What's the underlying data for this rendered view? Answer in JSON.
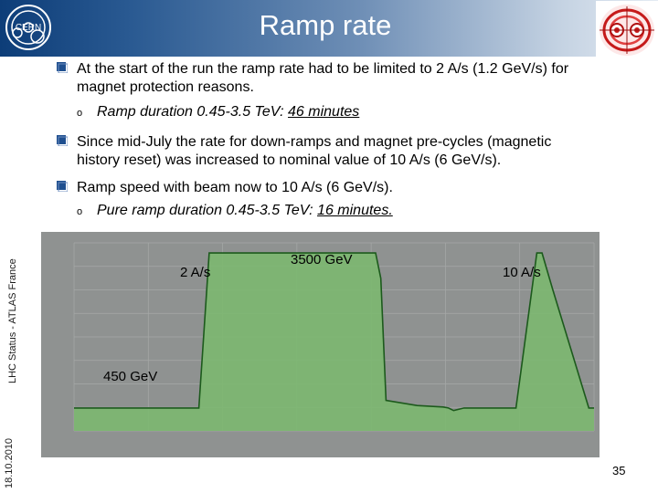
{
  "header": {
    "title": "Ramp rate",
    "cern_logo_text": "CERN",
    "accent": "#0d3d78"
  },
  "side": {
    "footer_left": "LHC Status - ATLAS France",
    "date": "18.10.2010"
  },
  "bullets": [
    {
      "line1": "At the start of the run the ramp rate had to be limited to 2 A/s (1.2 GeV/s)  for",
      "line2": "magnet protection reasons."
    },
    {
      "line1": "Since mid-July the rate for down-ramps and magnet pre-cycles (magnetic",
      "line2": "history reset) was increased to nominal value of 10 A/s (6 GeV/s)."
    },
    {
      "line1": "Ramp speed with beam now to 10 A/s (6 GeV/s)."
    }
  ],
  "sub_bullets": [
    {
      "prefix": "Ramp duration 0.45-3.5 TeV: ",
      "value": "46 minutes"
    },
    {
      "prefix": "Pure ramp duration 0.45-3.5 TeV: ",
      "value": "16 minutes."
    }
  ],
  "sub_bullet_marker": "o",
  "bullet_icon": "square-bullet-icon",
  "chart_labels": {
    "rate_slow": "2 A/s",
    "energy_top": "3500 GeV",
    "rate_fast": "10 A/s",
    "energy_bottom": "450 GeV"
  },
  "chart_data": {
    "type": "area",
    "fill_color": "#7cb870",
    "line_color": "#1c5a1c",
    "background": "#8f9291",
    "x": [
      0,
      10,
      20,
      22,
      24,
      26,
      30,
      42,
      54,
      58,
      59,
      60,
      66,
      71,
      72,
      73,
      75,
      79,
      81,
      85,
      89,
      90,
      92,
      99,
      100
    ],
    "y": [
      450,
      450,
      450,
      450,
      450,
      3500,
      3500,
      3500,
      3500,
      3500,
      3000,
      600,
      500,
      470,
      450,
      400,
      450,
      450,
      450,
      450,
      3500,
      3500,
      2800,
      450,
      450
    ],
    "x_unit": "minutes (relative)",
    "y_unit": "GeV"
  },
  "page_number": "35"
}
